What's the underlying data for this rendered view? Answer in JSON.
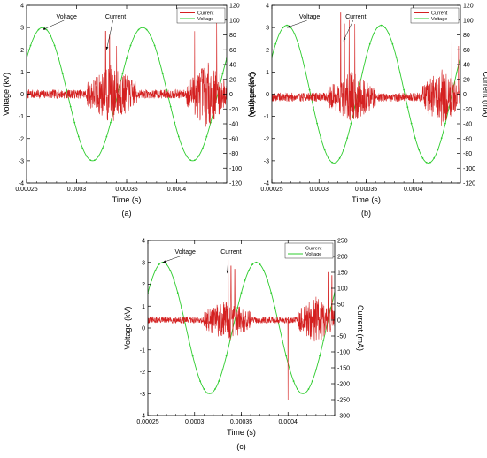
{
  "figure": {
    "subplots": [
      "(a)",
      "(b)",
      "(c)"
    ]
  },
  "colors": {
    "voltage": "#2ecc2e",
    "current": "#d42020",
    "axis": "#000000"
  },
  "chart_data": [
    {
      "type": "line",
      "caption": "(a)",
      "xlabel": "Time (s)",
      "ylabel": "Voltage (kV)",
      "y2label": "Current (mA)",
      "xlim": [
        0.00025,
        0.00045
      ],
      "ylim": [
        -4,
        4
      ],
      "y2lim": [
        -120,
        120
      ],
      "xticks": [
        "0.00025",
        "0.0003",
        "0.00035",
        "0.0004"
      ],
      "xtick_values": [
        0.00025,
        0.0003,
        0.00035,
        0.0004
      ],
      "yticks": [
        "-4",
        "-3",
        "-2",
        "-1",
        "0",
        "1",
        "2",
        "3",
        "4"
      ],
      "yticks_values": [
        -4,
        -3,
        -2,
        -1,
        0,
        1,
        2,
        3,
        4
      ],
      "y2ticks": [
        "-120",
        "-100",
        "-80",
        "-60",
        "-40",
        "-20",
        "0",
        "20",
        "40",
        "60",
        "80",
        "100",
        "120"
      ],
      "y2ticks_values": [
        -120,
        -100,
        -80,
        -60,
        -40,
        -20,
        0,
        20,
        40,
        60,
        80,
        100,
        120
      ],
      "legend": [
        "Current",
        "Voltage"
      ],
      "legend_position": "top-right",
      "annotations": [
        {
          "text": "Voltage",
          "x": 0.00029,
          "y": 3.4,
          "target_x": 0.000266,
          "target_y": 2.9
        },
        {
          "text": "Current",
          "x": 0.000339,
          "y": 3.4,
          "target_x": 0.00033,
          "target_y": 2.0
        }
      ],
      "series": [
        {
          "name": "Voltage",
          "axis": "left",
          "kind": "sine",
          "amplitude": 3.0,
          "period": 0.0001,
          "peak_time": 0.000266
        },
        {
          "name": "Current",
          "axis": "right",
          "kind": "noise",
          "baseline": 0,
          "noise_amp": 6,
          "seed": 7,
          "bursts": [
            [
              0.00031,
              0.00036,
              40
            ],
            [
              0.00041,
              0.00045,
              45
            ]
          ],
          "spikes": [
            [
              0.000329,
              85
            ],
            [
              0.000333,
              80
            ],
            [
              0.00034,
              65
            ],
            [
              0.000418,
              85
            ],
            [
              0.00044,
              100
            ],
            [
              0.000331,
              -35
            ]
          ]
        }
      ]
    },
    {
      "type": "line",
      "caption": "(b)",
      "xlabel": "Time (s)",
      "ylabel": "Voltage (kV)",
      "y2label": "Current (mA)",
      "xlim": [
        0.00025,
        0.00045
      ],
      "ylim": [
        -4,
        4
      ],
      "y2lim": [
        -120,
        120
      ],
      "xticks": [
        "0.00025",
        "0.0003",
        "0.00035",
        "0.0004"
      ],
      "xtick_values": [
        0.00025,
        0.0003,
        0.00035,
        0.0004
      ],
      "yticks": [
        "-4",
        "-3",
        "-2",
        "-1",
        "0",
        "1",
        "2",
        "3",
        "4"
      ],
      "yticks_values": [
        -4,
        -3,
        -2,
        -1,
        0,
        1,
        2,
        3,
        4
      ],
      "y2ticks": [
        "-120",
        "-100",
        "-80",
        "-60",
        "-40",
        "-20",
        "0",
        "20",
        "40",
        "60",
        "80",
        "100",
        "120"
      ],
      "y2ticks_values": [
        -120,
        -100,
        -80,
        -60,
        -40,
        -20,
        0,
        20,
        40,
        60,
        80,
        100,
        120
      ],
      "legend": [
        "Current",
        "Voltage"
      ],
      "legend_position": "top-right",
      "annotations": [
        {
          "text": "Voltage",
          "x": 0.00029,
          "y": 3.4,
          "target_x": 0.000266,
          "target_y": 3.0
        },
        {
          "text": "Current",
          "x": 0.000339,
          "y": 3.4,
          "target_x": 0.000326,
          "target_y": 2.4
        }
      ],
      "series": [
        {
          "name": "Voltage",
          "axis": "left",
          "kind": "sine",
          "amplitude": 3.1,
          "period": 0.0001,
          "peak_time": 0.000266
        },
        {
          "name": "Current",
          "axis": "right",
          "kind": "noise",
          "baseline": -4,
          "noise_amp": 6,
          "seed": 19,
          "bursts": [
            [
              0.00031,
              0.00036,
              35
            ],
            [
              0.00041,
              0.00045,
              40
            ]
          ],
          "spikes": [
            [
              0.000323,
              110
            ],
            [
              0.000327,
              95
            ],
            [
              0.000332,
              100
            ],
            [
              0.000338,
              95
            ],
            [
              0.000441,
              75
            ],
            [
              0.000448,
              65
            ]
          ]
        }
      ]
    },
    {
      "type": "line",
      "caption": "(c)",
      "xlabel": "Time (s)",
      "ylabel": "Voltage (kV)",
      "y2label": "Current (mA)",
      "xlim": [
        0.00025,
        0.00045
      ],
      "ylim": [
        -4,
        4
      ],
      "y2lim": [
        -300,
        250
      ],
      "xticks": [
        "0.00025",
        "0.0003",
        "0.00035",
        "0.0004"
      ],
      "xtick_values": [
        0.00025,
        0.0003,
        0.00035,
        0.0004
      ],
      "yticks": [
        "-4",
        "-3",
        "-2",
        "-1",
        "0",
        "1",
        "2",
        "3",
        "4"
      ],
      "yticks_values": [
        -4,
        -3,
        -2,
        -1,
        0,
        1,
        2,
        3,
        4
      ],
      "y2ticks": [
        "-300",
        "-250",
        "-200",
        "-150",
        "-100",
        "-50",
        "0",
        "50",
        "100",
        "150",
        "200",
        "250"
      ],
      "y2ticks_values": [
        -300,
        -250,
        -200,
        -150,
        -100,
        -50,
        0,
        50,
        100,
        150,
        200,
        250
      ],
      "legend": [
        "Current",
        "Voltage"
      ],
      "legend_position": "top-right",
      "annotations": [
        {
          "text": "Voltage",
          "x": 0.00029,
          "y": 3.4,
          "target_x": 0.000266,
          "target_y": 3.0
        },
        {
          "text": "Current",
          "x": 0.000339,
          "y": 3.4,
          "target_x": 0.000335,
          "target_y": 2.5
        }
      ],
      "series": [
        {
          "name": "Voltage",
          "axis": "left",
          "kind": "sine",
          "amplitude": 3.0,
          "period": 0.0001,
          "peak_time": 0.000266
        },
        {
          "name": "Current",
          "axis": "right",
          "kind": "noise",
          "baseline": 0,
          "noise_amp": 10,
          "seed": 31,
          "bursts": [
            [
              0.00031,
              0.00036,
              70
            ],
            [
              0.00041,
              0.00045,
              75
            ]
          ],
          "spikes": [
            [
              0.000336,
              190
            ],
            [
              0.000339,
              170
            ],
            [
              0.000343,
              160
            ],
            [
              0.0004,
              -250
            ],
            [
              0.000443,
              150
            ],
            [
              0.000447,
              140
            ]
          ]
        }
      ]
    }
  ]
}
